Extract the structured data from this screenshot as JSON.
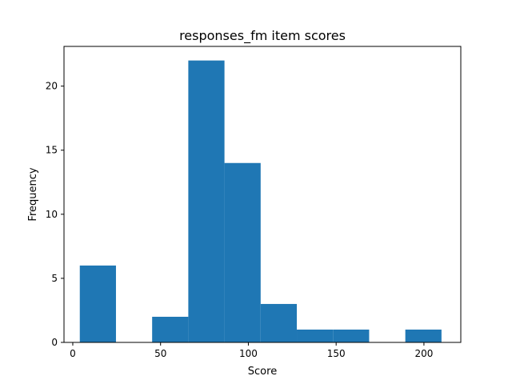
{
  "chart_data": {
    "type": "histogram",
    "title": "responses_fm item scores",
    "xlabel": "Score",
    "ylabel": "Frequency",
    "xlim": [
      -5,
      221
    ],
    "ylim": [
      0,
      23.1
    ],
    "xticks": [
      0,
      50,
      100,
      150,
      200
    ],
    "yticks": [
      0,
      5,
      10,
      15,
      20
    ],
    "bins": [
      {
        "x0": 4,
        "x1": 24.6,
        "count": 6
      },
      {
        "x0": 24.6,
        "x1": 45.2,
        "count": 0
      },
      {
        "x0": 45.2,
        "x1": 65.8,
        "count": 2
      },
      {
        "x0": 65.8,
        "x1": 86.4,
        "count": 22
      },
      {
        "x0": 86.4,
        "x1": 107,
        "count": 14
      },
      {
        "x0": 107,
        "x1": 127.6,
        "count": 3
      },
      {
        "x0": 127.6,
        "x1": 148.2,
        "count": 1
      },
      {
        "x0": 148.2,
        "x1": 168.8,
        "count": 1
      },
      {
        "x0": 168.8,
        "x1": 189.4,
        "count": 0
      },
      {
        "x0": 189.4,
        "x1": 210,
        "count": 1
      }
    ],
    "bar_color": "#1f77b4",
    "grid": false,
    "legend": false
  }
}
